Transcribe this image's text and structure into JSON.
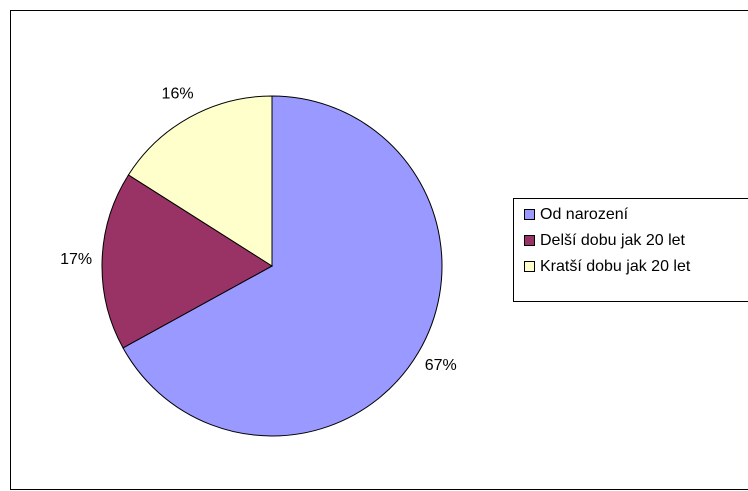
{
  "chart_data": {
    "type": "pie",
    "categories": [
      "Od narození",
      "Delší dobu jak 20 let",
      "Kratší dobu jak 20 let"
    ],
    "values": [
      67,
      17,
      16
    ],
    "value_labels": [
      "67%",
      "17%",
      "16%"
    ],
    "colors": [
      "#9999ff",
      "#993366",
      "#ffffcc"
    ],
    "legend": "right"
  }
}
